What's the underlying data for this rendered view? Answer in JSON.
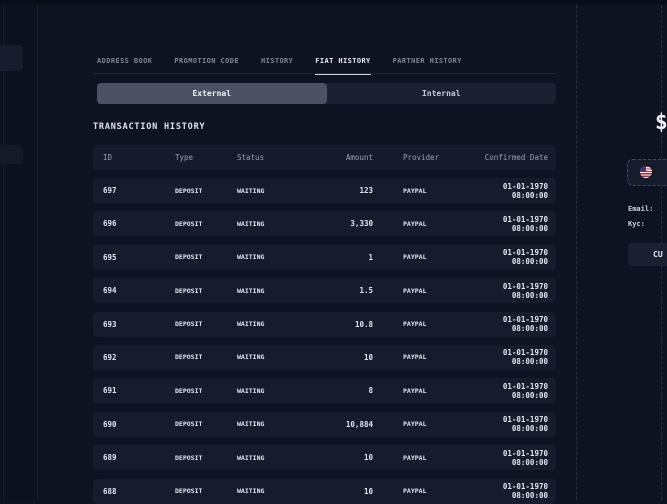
{
  "tabs": [
    {
      "label": "ADDRESS BOOK",
      "active": false
    },
    {
      "label": "PROMOTION CODE",
      "active": false
    },
    {
      "label": "HISTORY",
      "active": false
    },
    {
      "label": "FIAT HISTORY",
      "active": true
    },
    {
      "label": "PARTNER HISTORY",
      "active": false
    }
  ],
  "toggle": {
    "external_label": "External",
    "internal_label": "Internal",
    "selected": "External"
  },
  "section_title": "TRANSACTION HISTORY",
  "table": {
    "columns": {
      "id": "ID",
      "type": "Type",
      "status": "Status",
      "amount": "Amount",
      "provider": "Provider",
      "confirmed": "Confirmed Date"
    },
    "rows": [
      {
        "id": "697",
        "type": "DEPOSIT",
        "status": "WAITING",
        "amount": "123",
        "provider": "PAYPAL",
        "confirmed": "01-01-1970 08:00:00"
      },
      {
        "id": "696",
        "type": "DEPOSIT",
        "status": "WAITING",
        "amount": "3,330",
        "provider": "PAYPAL",
        "confirmed": "01-01-1970 08:00:00"
      },
      {
        "id": "695",
        "type": "DEPOSIT",
        "status": "WAITING",
        "amount": "1",
        "provider": "PAYPAL",
        "confirmed": "01-01-1970 08:00:00"
      },
      {
        "id": "694",
        "type": "DEPOSIT",
        "status": "WAITING",
        "amount": "1.5",
        "provider": "PAYPAL",
        "confirmed": "01-01-1970 08:00:00"
      },
      {
        "id": "693",
        "type": "DEPOSIT",
        "status": "WAITING",
        "amount": "10.8",
        "provider": "PAYPAL",
        "confirmed": "01-01-1970 08:00:00"
      },
      {
        "id": "692",
        "type": "DEPOSIT",
        "status": "WAITING",
        "amount": "10",
        "provider": "PAYPAL",
        "confirmed": "01-01-1970 08:00:00"
      },
      {
        "id": "691",
        "type": "DEPOSIT",
        "status": "WAITING",
        "amount": "8",
        "provider": "PAYPAL",
        "confirmed": "01-01-1970 08:00:00"
      },
      {
        "id": "690",
        "type": "DEPOSIT",
        "status": "WAITING",
        "amount": "10,884",
        "provider": "PAYPAL",
        "confirmed": "01-01-1970 08:00:00"
      },
      {
        "id": "689",
        "type": "DEPOSIT",
        "status": "WAITING",
        "amount": "10",
        "provider": "PAYPAL",
        "confirmed": "01-01-1970 08:00:00"
      },
      {
        "id": "688",
        "type": "DEPOSIT",
        "status": "WAITING",
        "amount": "10",
        "provider": "PAYPAL",
        "confirmed": "01-01-1970 08:00:00"
      }
    ]
  },
  "right_panel": {
    "balance_fragment": "$",
    "flag_icon": "us-flag-icon",
    "email_label": "Email:",
    "kyc_label": "Kyc:",
    "button_fragment": "CU"
  },
  "colors": {
    "background": "#0d1321",
    "row_background": "#151c2c",
    "selected_toggle": "#4a5263",
    "flag_blue": "#3c3b6e",
    "flag_red": "#b22234"
  }
}
